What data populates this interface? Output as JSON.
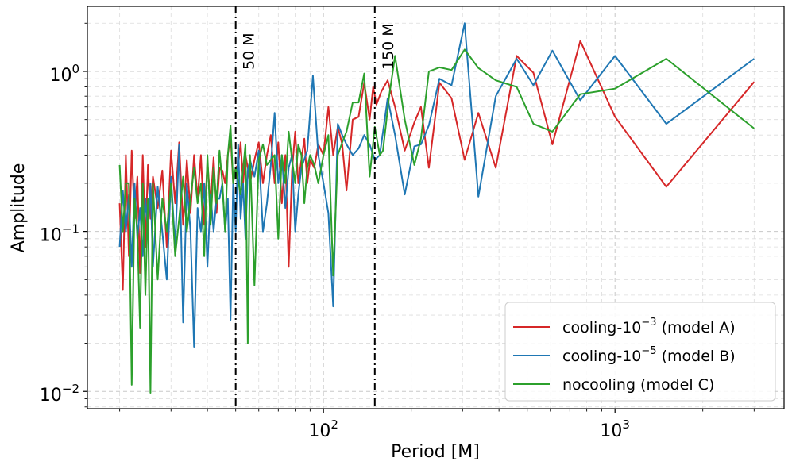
{
  "chart_data": {
    "type": "line",
    "xlabel": "Period [M]",
    "ylabel": "Amplitude",
    "xscale": "log",
    "yscale": "log",
    "xlim": [
      15.5,
      3800
    ],
    "ylim": [
      0.0078,
      2.55
    ],
    "grid": true,
    "legend_position": "lower-right",
    "x_major_ticks": [
      {
        "value": 100,
        "base": "10",
        "exp": "2"
      },
      {
        "value": 1000,
        "base": "10",
        "exp": "3"
      }
    ],
    "y_major_ticks": [
      {
        "value": 1,
        "base": "10",
        "exp": "0"
      },
      {
        "value": 0.1,
        "base": "10",
        "exp": "−1"
      },
      {
        "value": 0.01,
        "base": "10",
        "exp": "−2"
      }
    ],
    "vlines": [
      {
        "x": 50,
        "label": "50 M"
      },
      {
        "x": 150,
        "label": "150 M"
      }
    ],
    "series": [
      {
        "name_main": "cooling-10",
        "name_sup": "−3",
        "name_tail": " (model A)",
        "color": "#d62728",
        "points": [
          [
            20,
            0.15
          ],
          [
            20.5,
            0.043
          ],
          [
            21,
            0.3
          ],
          [
            21.5,
            0.07
          ],
          [
            22,
            0.32
          ],
          [
            22.5,
            0.12
          ],
          [
            23,
            0.22
          ],
          [
            23.5,
            0.055
          ],
          [
            24,
            0.3
          ],
          [
            24.5,
            0.08
          ],
          [
            25,
            0.26
          ],
          [
            25.5,
            0.12
          ],
          [
            26,
            0.22
          ],
          [
            27,
            0.14
          ],
          [
            28,
            0.24
          ],
          [
            29,
            0.08
          ],
          [
            30,
            0.32
          ],
          [
            31,
            0.15
          ],
          [
            32,
            0.36
          ],
          [
            33,
            0.11
          ],
          [
            34,
            0.28
          ],
          [
            35,
            0.13
          ],
          [
            36,
            0.3
          ],
          [
            37,
            0.16
          ],
          [
            38,
            0.3
          ],
          [
            39,
            0.11
          ],
          [
            40,
            0.27
          ],
          [
            41,
            0.15
          ],
          [
            42,
            0.29
          ],
          [
            43,
            0.13
          ],
          [
            44,
            0.25
          ],
          [
            45,
            0.24
          ],
          [
            46,
            0.2
          ],
          [
            47,
            0.3
          ],
          [
            48,
            0.4
          ],
          [
            49,
            0.2
          ],
          [
            50,
            0.25
          ],
          [
            51,
            0.26
          ],
          [
            52,
            0.36
          ],
          [
            53,
            0.2
          ],
          [
            54,
            0.3
          ],
          [
            55,
            0.25
          ],
          [
            56,
            0.2
          ],
          [
            58,
            0.28
          ],
          [
            60,
            0.36
          ],
          [
            62,
            0.2
          ],
          [
            64,
            0.3
          ],
          [
            66,
            0.4
          ],
          [
            68,
            0.2
          ],
          [
            70,
            0.36
          ],
          [
            72,
            0.15
          ],
          [
            74,
            0.3
          ],
          [
            76,
            0.06
          ],
          [
            78,
            0.24
          ],
          [
            80,
            0.42
          ],
          [
            82,
            0.2
          ],
          [
            84,
            0.28
          ],
          [
            86,
            0.38
          ],
          [
            88,
            0.2
          ],
          [
            90,
            0.28
          ],
          [
            93,
            0.25
          ],
          [
            96,
            0.35
          ],
          [
            100,
            0.3
          ],
          [
            104,
            0.6
          ],
          [
            108,
            0.3
          ],
          [
            112,
            0.45
          ],
          [
            116,
            0.35
          ],
          [
            120,
            0.18
          ],
          [
            126,
            0.5
          ],
          [
            132,
            0.52
          ],
          [
            138,
            0.85
          ],
          [
            144,
            0.5
          ],
          [
            148,
            0.8
          ],
          [
            152,
            0.62
          ],
          [
            158,
            0.75
          ],
          [
            166,
            0.88
          ],
          [
            176,
            0.6
          ],
          [
            190,
            0.32
          ],
          [
            205,
            0.48
          ],
          [
            216,
            0.6
          ],
          [
            230,
            0.25
          ],
          [
            250,
            0.85
          ],
          [
            275,
            0.68
          ],
          [
            305,
            0.28
          ],
          [
            340,
            0.55
          ],
          [
            390,
            0.25
          ],
          [
            460,
            1.25
          ],
          [
            525,
            0.98
          ],
          [
            610,
            0.35
          ],
          [
            760,
            1.55
          ],
          [
            1000,
            0.52
          ],
          [
            1500,
            0.19
          ],
          [
            3000,
            0.86
          ]
        ]
      },
      {
        "name_main": "cooling-10",
        "name_sup": "−5",
        "name_tail": " (model B)",
        "color": "#1f77b4",
        "points": [
          [
            20,
            0.08
          ],
          [
            20.5,
            0.18
          ],
          [
            21,
            0.1
          ],
          [
            21.5,
            0.17
          ],
          [
            22,
            0.06
          ],
          [
            22.5,
            0.2
          ],
          [
            23,
            0.09
          ],
          [
            23.5,
            0.14
          ],
          [
            24,
            0.07
          ],
          [
            24.5,
            0.16
          ],
          [
            25,
            0.1
          ],
          [
            25.5,
            0.2
          ],
          [
            26,
            0.06
          ],
          [
            27,
            0.19
          ],
          [
            28,
            0.1
          ],
          [
            29,
            0.05
          ],
          [
            30,
            0.22
          ],
          [
            31,
            0.08
          ],
          [
            32,
            0.35
          ],
          [
            33,
            0.027
          ],
          [
            34,
            0.2
          ],
          [
            35,
            0.1
          ],
          [
            36,
            0.019
          ],
          [
            37,
            0.14
          ],
          [
            38,
            0.1
          ],
          [
            39,
            0.2
          ],
          [
            40,
            0.06
          ],
          [
            41,
            0.17
          ],
          [
            42,
            0.1
          ],
          [
            43,
            0.16
          ],
          [
            44,
            0.16
          ],
          [
            45,
            0.2
          ],
          [
            46,
            0.1
          ],
          [
            47,
            0.16
          ],
          [
            48,
            0.028
          ],
          [
            49,
            0.2
          ],
          [
            50,
            0.1
          ],
          [
            51,
            0.35
          ],
          [
            52,
            0.12
          ],
          [
            53,
            0.2
          ],
          [
            54,
            0.09
          ],
          [
            55,
            0.24
          ],
          [
            56,
            0.28
          ],
          [
            58,
            0.22
          ],
          [
            60,
            0.32
          ],
          [
            62,
            0.1
          ],
          [
            64,
            0.15
          ],
          [
            66,
            0.26
          ],
          [
            68,
            0.55
          ],
          [
            70,
            0.2
          ],
          [
            72,
            0.3
          ],
          [
            74,
            0.14
          ],
          [
            76,
            0.25
          ],
          [
            78,
            0.3
          ],
          [
            80,
            0.1
          ],
          [
            82,
            0.17
          ],
          [
            84,
            0.25
          ],
          [
            88,
            0.32
          ],
          [
            92,
            0.94
          ],
          [
            96,
            0.3
          ],
          [
            100,
            0.2
          ],
          [
            104,
            0.13
          ],
          [
            108,
            0.034
          ],
          [
            112,
            0.47
          ],
          [
            116,
            0.4
          ],
          [
            120,
            0.35
          ],
          [
            126,
            0.3
          ],
          [
            132,
            0.33
          ],
          [
            138,
            0.4
          ],
          [
            144,
            0.35
          ],
          [
            150,
            0.28
          ],
          [
            156,
            0.3
          ],
          [
            166,
            0.68
          ],
          [
            176,
            0.4
          ],
          [
            190,
            0.17
          ],
          [
            205,
            0.34
          ],
          [
            216,
            0.35
          ],
          [
            230,
            0.46
          ],
          [
            250,
            0.9
          ],
          [
            275,
            0.82
          ],
          [
            305,
            2.0
          ],
          [
            340,
            0.165
          ],
          [
            390,
            0.7
          ],
          [
            460,
            1.2
          ],
          [
            525,
            0.82
          ],
          [
            610,
            1.35
          ],
          [
            760,
            0.66
          ],
          [
            1000,
            1.25
          ],
          [
            1500,
            0.47
          ],
          [
            3000,
            1.2
          ]
        ]
      },
      {
        "name_main": "nocooling (model C)",
        "name_sup": "",
        "name_tail": "",
        "color": "#2ca02c",
        "points": [
          [
            20,
            0.26
          ],
          [
            20.5,
            0.1
          ],
          [
            21,
            0.2
          ],
          [
            21.5,
            0.2
          ],
          [
            22,
            0.011
          ],
          [
            22.5,
            0.16
          ],
          [
            23,
            0.1
          ],
          [
            23.5,
            0.025
          ],
          [
            24,
            0.2
          ],
          [
            24.5,
            0.04
          ],
          [
            25,
            0.16
          ],
          [
            25.5,
            0.0098
          ],
          [
            26,
            0.2
          ],
          [
            27,
            0.05
          ],
          [
            28,
            0.16
          ],
          [
            29,
            0.1
          ],
          [
            30,
            0.2
          ],
          [
            31,
            0.07
          ],
          [
            32,
            0.12
          ],
          [
            33,
            0.22
          ],
          [
            34,
            0.1
          ],
          [
            35,
            0.16
          ],
          [
            36,
            0.25
          ],
          [
            37,
            0.15
          ],
          [
            38,
            0.2
          ],
          [
            39,
            0.07
          ],
          [
            40,
            0.3
          ],
          [
            41,
            0.11
          ],
          [
            42,
            0.25
          ],
          [
            43,
            0.15
          ],
          [
            44,
            0.32
          ],
          [
            45,
            0.2
          ],
          [
            46,
            0.1
          ],
          [
            47,
            0.3
          ],
          [
            48,
            0.46
          ],
          [
            49,
            0.2
          ],
          [
            50,
            0.25
          ],
          [
            52,
            0.17
          ],
          [
            54,
            0.35
          ],
          [
            55,
            0.02
          ],
          [
            56,
            0.3
          ],
          [
            58,
            0.046
          ],
          [
            60,
            0.28
          ],
          [
            62,
            0.35
          ],
          [
            64,
            0.26
          ],
          [
            66,
            0.28
          ],
          [
            68,
            0.3
          ],
          [
            70,
            0.09
          ],
          [
            72,
            0.3
          ],
          [
            74,
            0.2
          ],
          [
            76,
            0.42
          ],
          [
            78,
            0.28
          ],
          [
            80,
            0.2
          ],
          [
            82,
            0.35
          ],
          [
            84,
            0.3
          ],
          [
            86,
            0.15
          ],
          [
            88,
            0.25
          ],
          [
            90,
            0.3
          ],
          [
            93,
            0.26
          ],
          [
            96,
            0.2
          ],
          [
            100,
            0.3
          ],
          [
            104,
            0.4
          ],
          [
            108,
            0.053
          ],
          [
            112,
            0.3
          ],
          [
            116,
            0.36
          ],
          [
            120,
            0.42
          ],
          [
            126,
            0.64
          ],
          [
            132,
            0.64
          ],
          [
            138,
            0.97
          ],
          [
            144,
            0.22
          ],
          [
            150,
            0.45
          ],
          [
            156,
            0.3
          ],
          [
            160,
            0.32
          ],
          [
            168,
            0.7
          ],
          [
            176,
            1.25
          ],
          [
            190,
            0.5
          ],
          [
            205,
            0.26
          ],
          [
            216,
            0.38
          ],
          [
            230,
            1.0
          ],
          [
            250,
            1.06
          ],
          [
            275,
            1.02
          ],
          [
            305,
            1.37
          ],
          [
            340,
            1.05
          ],
          [
            390,
            0.88
          ],
          [
            460,
            0.8
          ],
          [
            525,
            0.47
          ],
          [
            610,
            0.42
          ],
          [
            760,
            0.72
          ],
          [
            1000,
            0.78
          ],
          [
            1500,
            1.2
          ],
          [
            3000,
            0.44
          ]
        ]
      }
    ]
  }
}
